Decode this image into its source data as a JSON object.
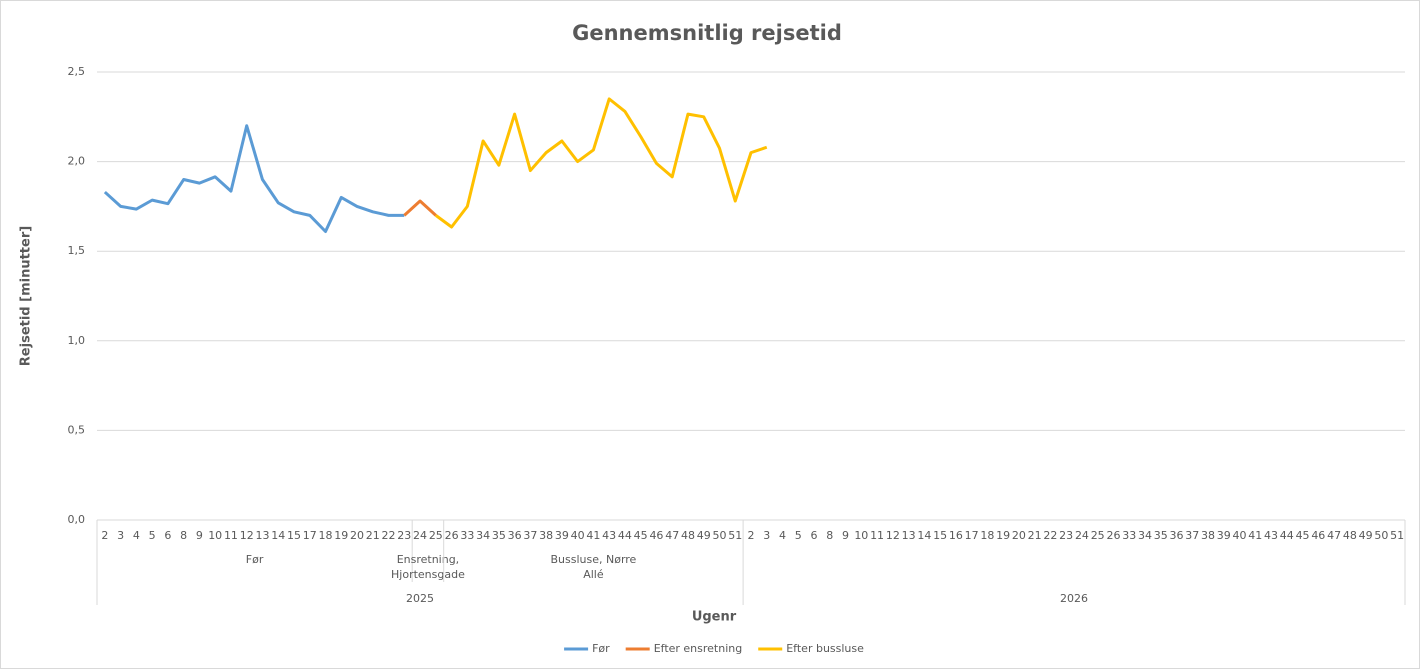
{
  "chart_data": {
    "type": "line",
    "title": "Gennemsnitlig rejsetid",
    "x_label": "Ugenr",
    "y_label": "Rejsetid [minutter]",
    "years": [
      {
        "label": "2025",
        "groups": [
          {
            "label": "Før",
            "weeks": [
              2,
              3,
              4,
              5,
              6,
              8,
              9,
              10,
              11,
              12,
              13,
              14,
              15,
              17,
              18,
              19,
              20,
              21,
              22,
              23
            ]
          },
          {
            "label": "Ensretning, Hjortensgade",
            "weeks": [
              24,
              25
            ]
          },
          {
            "label": "Bussluse, Nørre Allé",
            "weeks": [
              26,
              33,
              34,
              35,
              36,
              37,
              38,
              39,
              40,
              41,
              43,
              44,
              45,
              46,
              47,
              48,
              49,
              50,
              51
            ]
          }
        ]
      },
      {
        "label": "2026",
        "groups": [
          {
            "weeks": [
              2,
              3,
              4,
              5,
              6,
              8,
              9,
              10,
              11,
              12,
              13,
              14,
              15,
              16,
              17,
              18,
              19,
              20,
              21,
              22,
              23,
              24,
              25,
              26,
              33,
              34,
              35,
              36,
              37,
              38,
              39,
              40,
              41,
              43,
              44,
              45,
              46,
              47,
              48,
              49,
              50,
              51
            ]
          }
        ]
      }
    ],
    "series": [
      {
        "name": "Før",
        "color": "#5b9bd5",
        "values": [
          1.83,
          1.75,
          1.735,
          1.785,
          1.765,
          1.9,
          1.88,
          1.915,
          1.835,
          2.2,
          1.9,
          1.77,
          1.72,
          1.7,
          1.61,
          1.8,
          1.75,
          1.72,
          1.7,
          1.7,
          null,
          null,
          null,
          null,
          null,
          null,
          null,
          null,
          null,
          null,
          null,
          null,
          null,
          null,
          null,
          null,
          null,
          null,
          null,
          null,
          null,
          null,
          null,
          null,
          null,
          null,
          null,
          null,
          null,
          null,
          null,
          null,
          null,
          null,
          null,
          null,
          null,
          null,
          null,
          null,
          null,
          null,
          null,
          null,
          null,
          null,
          null,
          null,
          null,
          null,
          null,
          null,
          null,
          null,
          null,
          null,
          null,
          null,
          null
        ]
      },
      {
        "name": "Efter ensretning",
        "color": "#ed7d31",
        "values": [
          null,
          null,
          null,
          null,
          null,
          null,
          null,
          null,
          null,
          null,
          null,
          null,
          null,
          null,
          null,
          null,
          null,
          null,
          null,
          1.7,
          1.78,
          1.7,
          null,
          null,
          null,
          null,
          null,
          null,
          null,
          null,
          null,
          null,
          null,
          null,
          null,
          null,
          null,
          null,
          null,
          null,
          null,
          null,
          null,
          null,
          null,
          null,
          null,
          null,
          null,
          null,
          null,
          null,
          null,
          null,
          null,
          null,
          null,
          null,
          null,
          null,
          null,
          null,
          null,
          null,
          null,
          null,
          null,
          null,
          null,
          null,
          null,
          null,
          null,
          null,
          null,
          null,
          null,
          null,
          null,
          null,
          null
        ]
      },
      {
        "name": "Efter bussluse",
        "color": "#ffc000",
        "values": [
          null,
          null,
          null,
          null,
          null,
          null,
          null,
          null,
          null,
          null,
          null,
          null,
          null,
          null,
          null,
          null,
          null,
          null,
          null,
          null,
          null,
          1.7,
          1.635,
          1.75,
          2.115,
          1.98,
          2.265,
          1.95,
          2.05,
          2.115,
          2.0,
          2.065,
          2.35,
          2.28,
          2.14,
          1.99,
          1.915,
          2.265,
          2.25,
          2.075,
          1.78,
          2.05,
          2.08,
          null,
          null,
          null,
          null,
          null,
          null,
          null,
          null,
          null,
          null,
          null,
          null,
          null,
          null,
          null,
          null,
          null,
          null,
          null,
          null,
          null,
          null,
          null,
          null,
          null,
          null,
          null,
          null,
          null,
          null,
          null,
          null,
          null,
          null,
          null,
          null,
          null,
          null,
          null,
          null
        ]
      }
    ],
    "ylim": [
      0,
      2.5
    ],
    "yticks": [
      {
        "value": 0,
        "label": "0,0"
      },
      {
        "value": 0.5,
        "label": "0,5"
      },
      {
        "value": 1,
        "label": "1,0"
      },
      {
        "value": 1.5,
        "label": "1,5"
      },
      {
        "value": 2,
        "label": "2,0"
      },
      {
        "value": 2.5,
        "label": "2,5"
      }
    ],
    "grid": true,
    "legend": "bottom"
  }
}
